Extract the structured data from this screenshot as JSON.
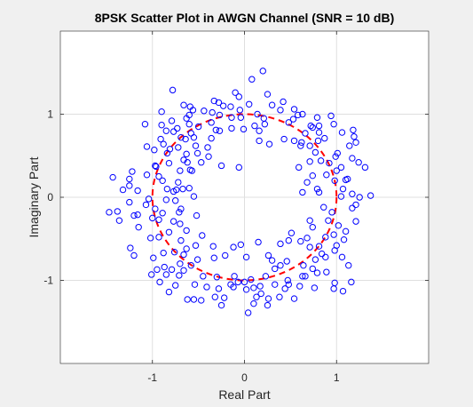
{
  "chart_data": {
    "type": "scatter",
    "title": "8PSK Scatter Plot in AWGN Channel (SNR = 10 dB)",
    "xlabel": "Real Part",
    "ylabel": "Imaginary Part",
    "xlim": [
      -2,
      2
    ],
    "ylim": [
      -2,
      2
    ],
    "xticks": [
      -1,
      0,
      1
    ],
    "xtick_labels": [
      "-1",
      "0",
      "1"
    ],
    "yticks": [
      -1,
      0,
      1
    ],
    "ytick_labels": [
      "-1",
      "0",
      "1"
    ],
    "grid": true,
    "colors": {
      "points": "#0000ff",
      "reference_circle": "#ff0000",
      "axes_background": "#ffffff",
      "figure_background": "#f0f0f0",
      "grid": "#dfdfdf",
      "axes_edge": "#262626"
    },
    "reference_circle": {
      "radius": 1,
      "style": "dashed"
    },
    "series": [
      {
        "marker": "o",
        "points": [
          [
            0.2,
            1.52
          ],
          [
            0.08,
            1.42
          ],
          [
            -0.78,
            1.29
          ],
          [
            0.25,
            1.24
          ],
          [
            -0.06,
            1.21
          ],
          [
            -0.33,
            1.16
          ],
          [
            -0.28,
            1.14
          ],
          [
            -0.15,
            1.09
          ],
          [
            0.42,
            1.15
          ],
          [
            0.3,
            1.11
          ],
          [
            -0.59,
            1.09
          ],
          [
            -0.05,
            1.05
          ],
          [
            0.05,
            1.12
          ],
          [
            -0.6,
            0.99
          ],
          [
            -0.63,
            0.95
          ],
          [
            -0.9,
            0.87
          ],
          [
            -1.08,
            0.88
          ],
          [
            -0.73,
            0.83
          ],
          [
            -0.85,
            0.8
          ],
          [
            -0.58,
            0.77
          ],
          [
            -0.31,
            0.81
          ],
          [
            -0.27,
            0.8
          ],
          [
            -0.55,
            0.72
          ],
          [
            -0.64,
            0.7
          ],
          [
            -0.88,
            0.64
          ],
          [
            -1.06,
            0.61
          ],
          [
            -0.72,
            0.6
          ],
          [
            -0.51,
            0.53
          ],
          [
            -0.39,
            0.49
          ],
          [
            -0.47,
            0.42
          ],
          [
            -0.62,
            0.42
          ],
          [
            -0.82,
            0.41
          ],
          [
            -0.97,
            0.38
          ],
          [
            -1.22,
            0.31
          ],
          [
            -1.06,
            0.27
          ],
          [
            -1.43,
            0.24
          ],
          [
            -0.93,
            0.25
          ],
          [
            -0.57,
            0.32
          ],
          [
            -0.59,
            0.33
          ],
          [
            -0.25,
            0.38
          ],
          [
            -0.06,
            0.36
          ],
          [
            -0.6,
            0.11
          ],
          [
            -0.67,
            0.1
          ],
          [
            -0.74,
            0.09
          ],
          [
            -0.84,
            0.1
          ],
          [
            -1.16,
            0.08
          ],
          [
            -1.25,
            0.14
          ],
          [
            -1.04,
            -0.02
          ],
          [
            -1.25,
            -0.06
          ],
          [
            -0.97,
            -0.14
          ],
          [
            -0.89,
            -0.19
          ],
          [
            -1.38,
            -0.17
          ],
          [
            -1.47,
            -0.18
          ],
          [
            -1.2,
            -0.22
          ],
          [
            -0.93,
            -0.27
          ],
          [
            -0.69,
            -0.14
          ],
          [
            -0.52,
            -0.22
          ],
          [
            -0.77,
            -0.29
          ],
          [
            -0.63,
            -0.4
          ],
          [
            -0.46,
            -0.46
          ],
          [
            -0.69,
            -0.52
          ],
          [
            -1.02,
            -0.49
          ],
          [
            -1.24,
            -0.61
          ],
          [
            -1.2,
            -0.7
          ],
          [
            -0.99,
            -0.73
          ],
          [
            -0.76,
            -0.66
          ],
          [
            -0.66,
            -0.69
          ],
          [
            -0.87,
            -0.84
          ],
          [
            -0.95,
            -0.87
          ],
          [
            -0.66,
            -0.88
          ],
          [
            -0.58,
            -0.82
          ],
          [
            -0.71,
            -0.94
          ],
          [
            -0.75,
            -1.06
          ],
          [
            -0.92,
            -1.02
          ],
          [
            -0.82,
            -1.14
          ],
          [
            -1.01,
            -0.93
          ],
          [
            -0.62,
            -1.23
          ],
          [
            -0.41,
            -1.08
          ],
          [
            -0.54,
            -1.05
          ],
          [
            -0.28,
            -1.1
          ],
          [
            -0.32,
            -1.2
          ],
          [
            -0.47,
            -1.24
          ],
          [
            -0.25,
            -1.3
          ],
          [
            -0.07,
            -1.02
          ],
          [
            0.02,
            -1.11
          ],
          [
            0.07,
            -0.99
          ],
          [
            0.1,
            -1.09
          ],
          [
            0.17,
            -1.07
          ],
          [
            0.13,
            -1.2
          ],
          [
            0.04,
            -1.39
          ],
          [
            0.1,
            -1.28
          ],
          [
            0.25,
            -1.3
          ],
          [
            0.38,
            -1.2
          ],
          [
            0.44,
            -1.1
          ],
          [
            0.6,
            -1.07
          ],
          [
            0.47,
            -1.0
          ],
          [
            0.23,
            -0.95
          ],
          [
            0.33,
            -0.86
          ],
          [
            0.3,
            -0.76
          ],
          [
            0.39,
            -0.82
          ],
          [
            0.46,
            -0.77
          ],
          [
            0.64,
            -0.82
          ],
          [
            0.66,
            -0.95
          ],
          [
            0.79,
            -0.91
          ],
          [
            0.98,
            -1.03
          ],
          [
            1.07,
            -1.13
          ],
          [
            0.97,
            -1.1
          ],
          [
            1.16,
            -1.02
          ],
          [
            0.84,
            -0.68
          ],
          [
            0.71,
            -0.6
          ],
          [
            0.81,
            -0.59
          ],
          [
            0.88,
            -0.72
          ],
          [
            0.98,
            -0.64
          ],
          [
            1.0,
            -0.58
          ],
          [
            1.08,
            -0.51
          ],
          [
            0.88,
            -0.48
          ],
          [
            0.68,
            -0.49
          ],
          [
            0.61,
            -0.53
          ],
          [
            0.39,
            -0.56
          ],
          [
            0.15,
            -0.54
          ],
          [
            -0.04,
            -0.57
          ],
          [
            -0.12,
            -0.6
          ],
          [
            -0.21,
            -0.7
          ],
          [
            -0.33,
            -0.73
          ],
          [
            0.02,
            -0.72
          ],
          [
            0.26,
            -0.7
          ],
          [
            0.48,
            -0.52
          ],
          [
            0.51,
            -0.43
          ],
          [
            0.71,
            -0.28
          ],
          [
            0.74,
            -0.36
          ],
          [
            0.91,
            -0.28
          ],
          [
            0.95,
            -0.18
          ],
          [
            1.17,
            -0.13
          ],
          [
            1.21,
            -0.09
          ],
          [
            1.25,
            0.0
          ],
          [
            1.37,
            0.02
          ],
          [
            1.17,
            0.04
          ],
          [
            1.07,
            0.1
          ],
          [
            1.1,
            0.21
          ],
          [
            0.98,
            0.2
          ],
          [
            0.89,
            0.27
          ],
          [
            0.74,
            0.26
          ],
          [
            0.68,
            0.18
          ],
          [
            0.79,
            0.1
          ],
          [
            0.63,
            0.06
          ],
          [
            0.81,
            0.06
          ],
          [
            0.59,
            0.36
          ],
          [
            0.71,
            0.43
          ],
          [
            0.83,
            0.44
          ],
          [
            0.92,
            0.41
          ],
          [
            1.05,
            0.36
          ],
          [
            1.24,
            0.42
          ],
          [
            1.31,
            0.36
          ],
          [
            1.01,
            0.53
          ],
          [
            0.99,
            0.49
          ],
          [
            0.77,
            0.54
          ],
          [
            0.71,
            0.62
          ],
          [
            0.62,
            0.66
          ],
          [
            0.66,
            0.77
          ],
          [
            0.8,
            0.68
          ],
          [
            0.87,
            0.71
          ],
          [
            1.14,
            0.62
          ],
          [
            1.21,
            0.66
          ],
          [
            1.19,
            0.73
          ],
          [
            0.97,
            0.88
          ],
          [
            0.74,
            0.84
          ],
          [
            0.72,
            0.86
          ],
          [
            0.54,
            0.68
          ],
          [
            0.43,
            0.7
          ],
          [
            0.27,
            0.64
          ],
          [
            0.16,
            0.68
          ],
          [
            0.16,
            0.8
          ],
          [
            0.11,
            0.86
          ],
          [
            0.22,
            0.88
          ],
          [
            0.21,
            0.95
          ],
          [
            -0.01,
            0.82
          ],
          [
            -0.14,
            0.83
          ],
          [
            -0.04,
            0.96
          ],
          [
            -0.14,
            0.96
          ],
          [
            0.53,
            0.94
          ],
          [
            0.58,
            0.99
          ],
          [
            0.63,
            1.0
          ],
          [
            0.79,
            0.96
          ],
          [
            0.81,
            0.86
          ],
          [
            0.81,
            0.78
          ],
          [
            -0.27,
            0.99
          ],
          [
            -0.35,
            1.02
          ],
          [
            -0.44,
            1.04
          ],
          [
            -0.56,
            1.05
          ],
          [
            -0.66,
            1.11
          ],
          [
            -0.9,
            1.03
          ],
          [
            -0.77,
            0.79
          ],
          [
            -0.5,
            0.85
          ],
          [
            -0.36,
            0.71
          ],
          [
            -0.53,
            0.62
          ],
          [
            -0.63,
            0.52
          ],
          [
            -0.84,
            0.53
          ],
          [
            -0.4,
            0.6
          ],
          [
            -0.66,
            0.45
          ],
          [
            -0.7,
            0.32
          ],
          [
            -0.89,
            0.2
          ],
          [
            -0.77,
            0.07
          ],
          [
            -0.55,
            0.01
          ],
          [
            -0.75,
            -0.04
          ],
          [
            -0.85,
            -0.03
          ],
          [
            -1.07,
            -0.09
          ],
          [
            -1.15,
            -0.36
          ],
          [
            -0.82,
            -0.42
          ],
          [
            -0.7,
            -0.32
          ],
          [
            -0.53,
            -0.58
          ],
          [
            -0.34,
            -0.59
          ],
          [
            -0.51,
            -0.75
          ],
          [
            -0.7,
            -0.8
          ],
          [
            -0.85,
            -0.93
          ],
          [
            -0.55,
            -1.23
          ],
          [
            -0.22,
            -1.21
          ],
          [
            -0.15,
            -1.05
          ],
          [
            0.0,
            -1.02
          ],
          [
            0.18,
            -1.16
          ],
          [
            0.54,
            -1.22
          ],
          [
            0.48,
            -1.05
          ],
          [
            0.63,
            -0.95
          ],
          [
            0.77,
            -0.75
          ],
          [
            1.06,
            -0.72
          ],
          [
            0.97,
            -0.45
          ],
          [
            1.21,
            -0.29
          ],
          [
            1.12,
            0.22
          ],
          [
            1.0,
            0.32
          ],
          [
            0.61,
            0.62
          ],
          [
            0.48,
            0.9
          ],
          [
            0.14,
            1.0
          ],
          [
            -0.23,
            1.1
          ],
          [
            -0.1,
            1.26
          ],
          [
            -0.36,
            0.9
          ],
          [
            -0.69,
            0.72
          ],
          [
            -0.98,
            0.57
          ],
          [
            -0.96,
            0.37
          ],
          [
            -1.25,
            0.22
          ],
          [
            -1.16,
            -0.21
          ],
          [
            -1.0,
            -0.25
          ],
          [
            -0.93,
            -0.48
          ],
          [
            -0.63,
            -0.62
          ],
          [
            -0.3,
            -0.96
          ],
          [
            -0.11,
            -0.95
          ],
          [
            0.33,
            -1.05
          ],
          [
            0.89,
            -0.9
          ],
          [
            1.13,
            -0.82
          ],
          [
            0.86,
            -0.12
          ],
          [
            1.05,
            0.01
          ],
          [
            1.17,
            0.47
          ],
          [
            0.94,
            0.98
          ],
          [
            0.39,
            1.05
          ],
          [
            -0.79,
            0.92
          ],
          [
            -0.91,
            0.7
          ],
          [
            -1.32,
            0.09
          ],
          [
            -1.36,
            -0.28
          ],
          [
            -0.79,
            -0.87
          ],
          [
            -0.45,
            -0.95
          ],
          [
            0.26,
            -1.22
          ],
          [
            0.74,
            -0.86
          ],
          [
            1.1,
            -0.41
          ],
          [
            1.06,
            0.78
          ],
          [
            0.54,
            1.06
          ],
          [
            -0.6,
            0.88
          ],
          [
            -0.81,
            0.58
          ],
          [
            -0.72,
            0.18
          ],
          [
            -0.71,
            -0.18
          ],
          [
            -0.88,
            -0.67
          ],
          [
            -0.12,
            -1.08
          ],
          [
            0.76,
            -1.09
          ],
          [
            1.02,
            -0.34
          ],
          [
            1.18,
            0.81
          ]
        ]
      }
    ]
  }
}
